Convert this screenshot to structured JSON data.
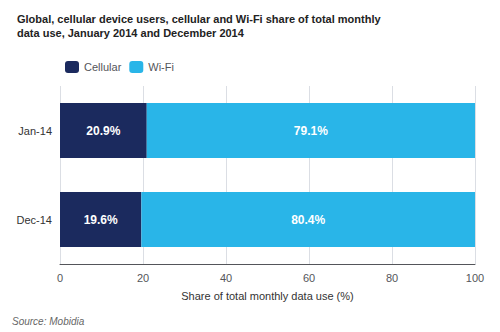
{
  "chart_data": {
    "type": "bar",
    "orientation": "horizontal",
    "stacked": true,
    "title": "Global, cellular device users, cellular and Wi-Fi share of total monthly",
    "subtitle": "data use, January 2014 and December 2014",
    "categories": [
      "Jan-14",
      "Dec-14"
    ],
    "series": [
      {
        "name": "Cellular",
        "color": "#1b2a5e",
        "values": [
          20.9,
          19.6
        ],
        "value_labels": [
          "20.9%",
          "19.6%"
        ]
      },
      {
        "name": "Wi-Fi",
        "color": "#29b5e8",
        "values": [
          79.1,
          80.4
        ],
        "value_labels": [
          "79.1%",
          "80.4%"
        ]
      }
    ],
    "xlabel": "Share of total monthly data use (%)",
    "xlim": [
      0,
      100
    ],
    "xticks": [
      0,
      20,
      40,
      60,
      80,
      100
    ],
    "grid": true,
    "legend": "upper left",
    "data_labels": true,
    "annotations": [
      "Source: Mobidia"
    ]
  }
}
